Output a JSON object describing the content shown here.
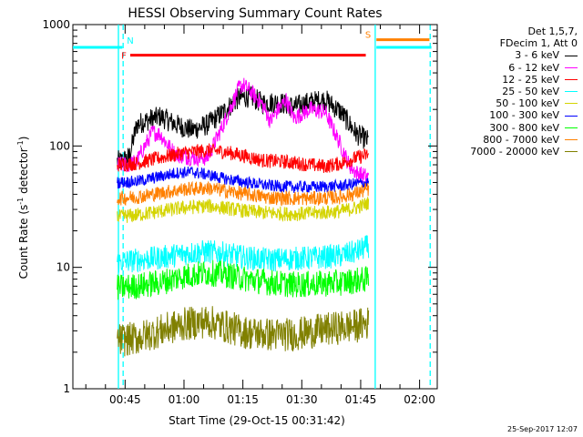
{
  "chart_data": {
    "type": "line",
    "title": "HESSI Observing Summary Count Rates",
    "xlabel": "Start Time (29-Oct-15 00:31:42)",
    "ylabel_main": "Count Rate (s",
    "ylabel_exp1": "-1",
    "ylabel_mid": " detector",
    "ylabel_exp2": "-1",
    "ylabel_end": ")",
    "yscale": "log",
    "ylim": [
      1,
      1000
    ],
    "xlim_minutes": [
      31.7,
      124.5
    ],
    "y_ticks": [
      {
        "value": 1,
        "label": "1"
      },
      {
        "value": 10,
        "label": "10"
      },
      {
        "value": 100,
        "label": "100"
      },
      {
        "value": 1000,
        "label": "1000"
      }
    ],
    "x_ticks": [
      {
        "minute": 45,
        "label": "00:45"
      },
      {
        "minute": 60,
        "label": "01:00"
      },
      {
        "minute": 75,
        "label": "01:15"
      },
      {
        "minute": 90,
        "label": "01:30"
      },
      {
        "minute": 105,
        "label": "01:45"
      },
      {
        "minute": 120,
        "label": "02:00"
      }
    ],
    "grid": false,
    "legend_header": [
      "Det 1,5,7,",
      "FDecim 1, Att 0"
    ],
    "series": [
      {
        "name": "3 - 6 keV",
        "color": "#000000",
        "x": [
          43.0,
          44,
          46,
          48,
          50,
          54,
          58,
          62,
          66,
          70,
          74,
          77,
          80,
          84,
          88,
          92,
          96,
          100,
          104,
          107
        ],
        "y": [
          75,
          75,
          80,
          150,
          160,
          175,
          150,
          135,
          150,
          190,
          250,
          255,
          225,
          230,
          210,
          230,
          240,
          190,
          125,
          110
        ]
      },
      {
        "name": "6 - 12 keV",
        "color": "#ff00ff",
        "x": [
          43.0,
          46,
          48,
          50,
          52,
          54,
          56,
          58,
          62,
          66,
          70,
          74,
          75,
          77,
          80,
          82,
          84,
          86,
          88,
          92,
          96,
          100,
          102,
          104,
          107
        ],
        "y": [
          70,
          70,
          75,
          100,
          130,
          125,
          100,
          85,
          80,
          80,
          150,
          300,
          320,
          280,
          220,
          160,
          200,
          240,
          170,
          200,
          190,
          100,
          70,
          60,
          55
        ]
      },
      {
        "name": "12 - 25 keV",
        "color": "#ff0000",
        "x": [
          43.0,
          48,
          54,
          60,
          66,
          70,
          76,
          80,
          86,
          92,
          96,
          100,
          104,
          107
        ],
        "y": [
          70,
          72,
          80,
          88,
          92,
          90,
          82,
          76,
          74,
          70,
          68,
          72,
          80,
          85
        ]
      },
      {
        "name": "25 - 50 keV",
        "color": "#00ffff",
        "x": [
          43.0,
          48,
          54,
          60,
          66,
          70,
          76,
          82,
          88,
          94,
          100,
          104,
          107
        ],
        "y": [
          11,
          11.5,
          12,
          13,
          13.5,
          13,
          12,
          11.5,
          11.8,
          12,
          12.5,
          13.5,
          15
        ]
      },
      {
        "name": "50 - 100 keV",
        "color": "#d4d400",
        "x": [
          43.0,
          48,
          54,
          60,
          66,
          70,
          76,
          82,
          88,
          94,
          100,
          104,
          107
        ],
        "y": [
          26,
          27,
          29,
          31,
          32,
          31,
          29,
          28,
          27.5,
          28,
          29,
          31,
          34
        ]
      },
      {
        "name": "100 - 300 keV",
        "color": "#0000ff",
        "x": [
          43.0,
          48,
          54,
          58,
          62,
          66,
          70,
          76,
          82,
          88,
          94,
          100,
          104,
          107
        ],
        "y": [
          50,
          51,
          56,
          60,
          61,
          58,
          54,
          50,
          47,
          46,
          46,
          47,
          49,
          50
        ]
      },
      {
        "name": "300 - 800 keV",
        "color": "#00ff00",
        "x": [
          43.0,
          48,
          54,
          60,
          66,
          70,
          76,
          82,
          88,
          94,
          100,
          104,
          107
        ],
        "y": [
          6.8,
          7,
          7.5,
          8.5,
          9,
          8.8,
          8,
          7.5,
          7.2,
          7.3,
          7.5,
          7.8,
          8
        ]
      },
      {
        "name": "800 - 7000 keV",
        "color": "#ff8000",
        "x": [
          43.0,
          48,
          54,
          60,
          66,
          70,
          76,
          82,
          88,
          94,
          100,
          104,
          107
        ],
        "y": [
          37,
          38,
          41,
          44,
          45,
          43,
          40,
          37.5,
          37,
          37,
          38,
          41,
          44
        ]
      },
      {
        "name": "7000 - 20000 keV",
        "color": "#808000",
        "x": [
          43.0,
          48,
          54,
          60,
          66,
          70,
          76,
          82,
          88,
          94,
          100,
          104,
          107
        ],
        "y": [
          2.5,
          2.6,
          3,
          3.4,
          3.6,
          3.3,
          2.9,
          2.8,
          2.8,
          3,
          3.2,
          3.3,
          3.5
        ]
      }
    ],
    "attenuator_markers": [
      {
        "label": "F",
        "color": "#ff0000",
        "x_start": 46.3,
        "x_end": 106.3,
        "y": 560
      },
      {
        "label": "S",
        "color": "#ff8000",
        "x_start": 109.0,
        "x_end": 122.5,
        "y": 750
      }
    ],
    "night_markers": [
      {
        "label": "N",
        "color": "#00ffff",
        "x_start": 31.7,
        "x_end": 44.3,
        "y": 650
      },
      {
        "label": "",
        "color": "#00ffff",
        "x_start": 109.0,
        "x_end": 123.0,
        "y": 650
      }
    ],
    "vertical_lines": [
      {
        "x": 43.3,
        "color": "#00ffff",
        "style": "solid"
      },
      {
        "x": 44.5,
        "color": "#00ffff",
        "style": "dashed"
      },
      {
        "x": 108.7,
        "color": "#00ffff",
        "style": "solid"
      },
      {
        "x": 122.7,
        "color": "#00ffff",
        "style": "dashed"
      }
    ]
  },
  "footer": {
    "timestamp": "25-Sep-2017 12:07"
  }
}
